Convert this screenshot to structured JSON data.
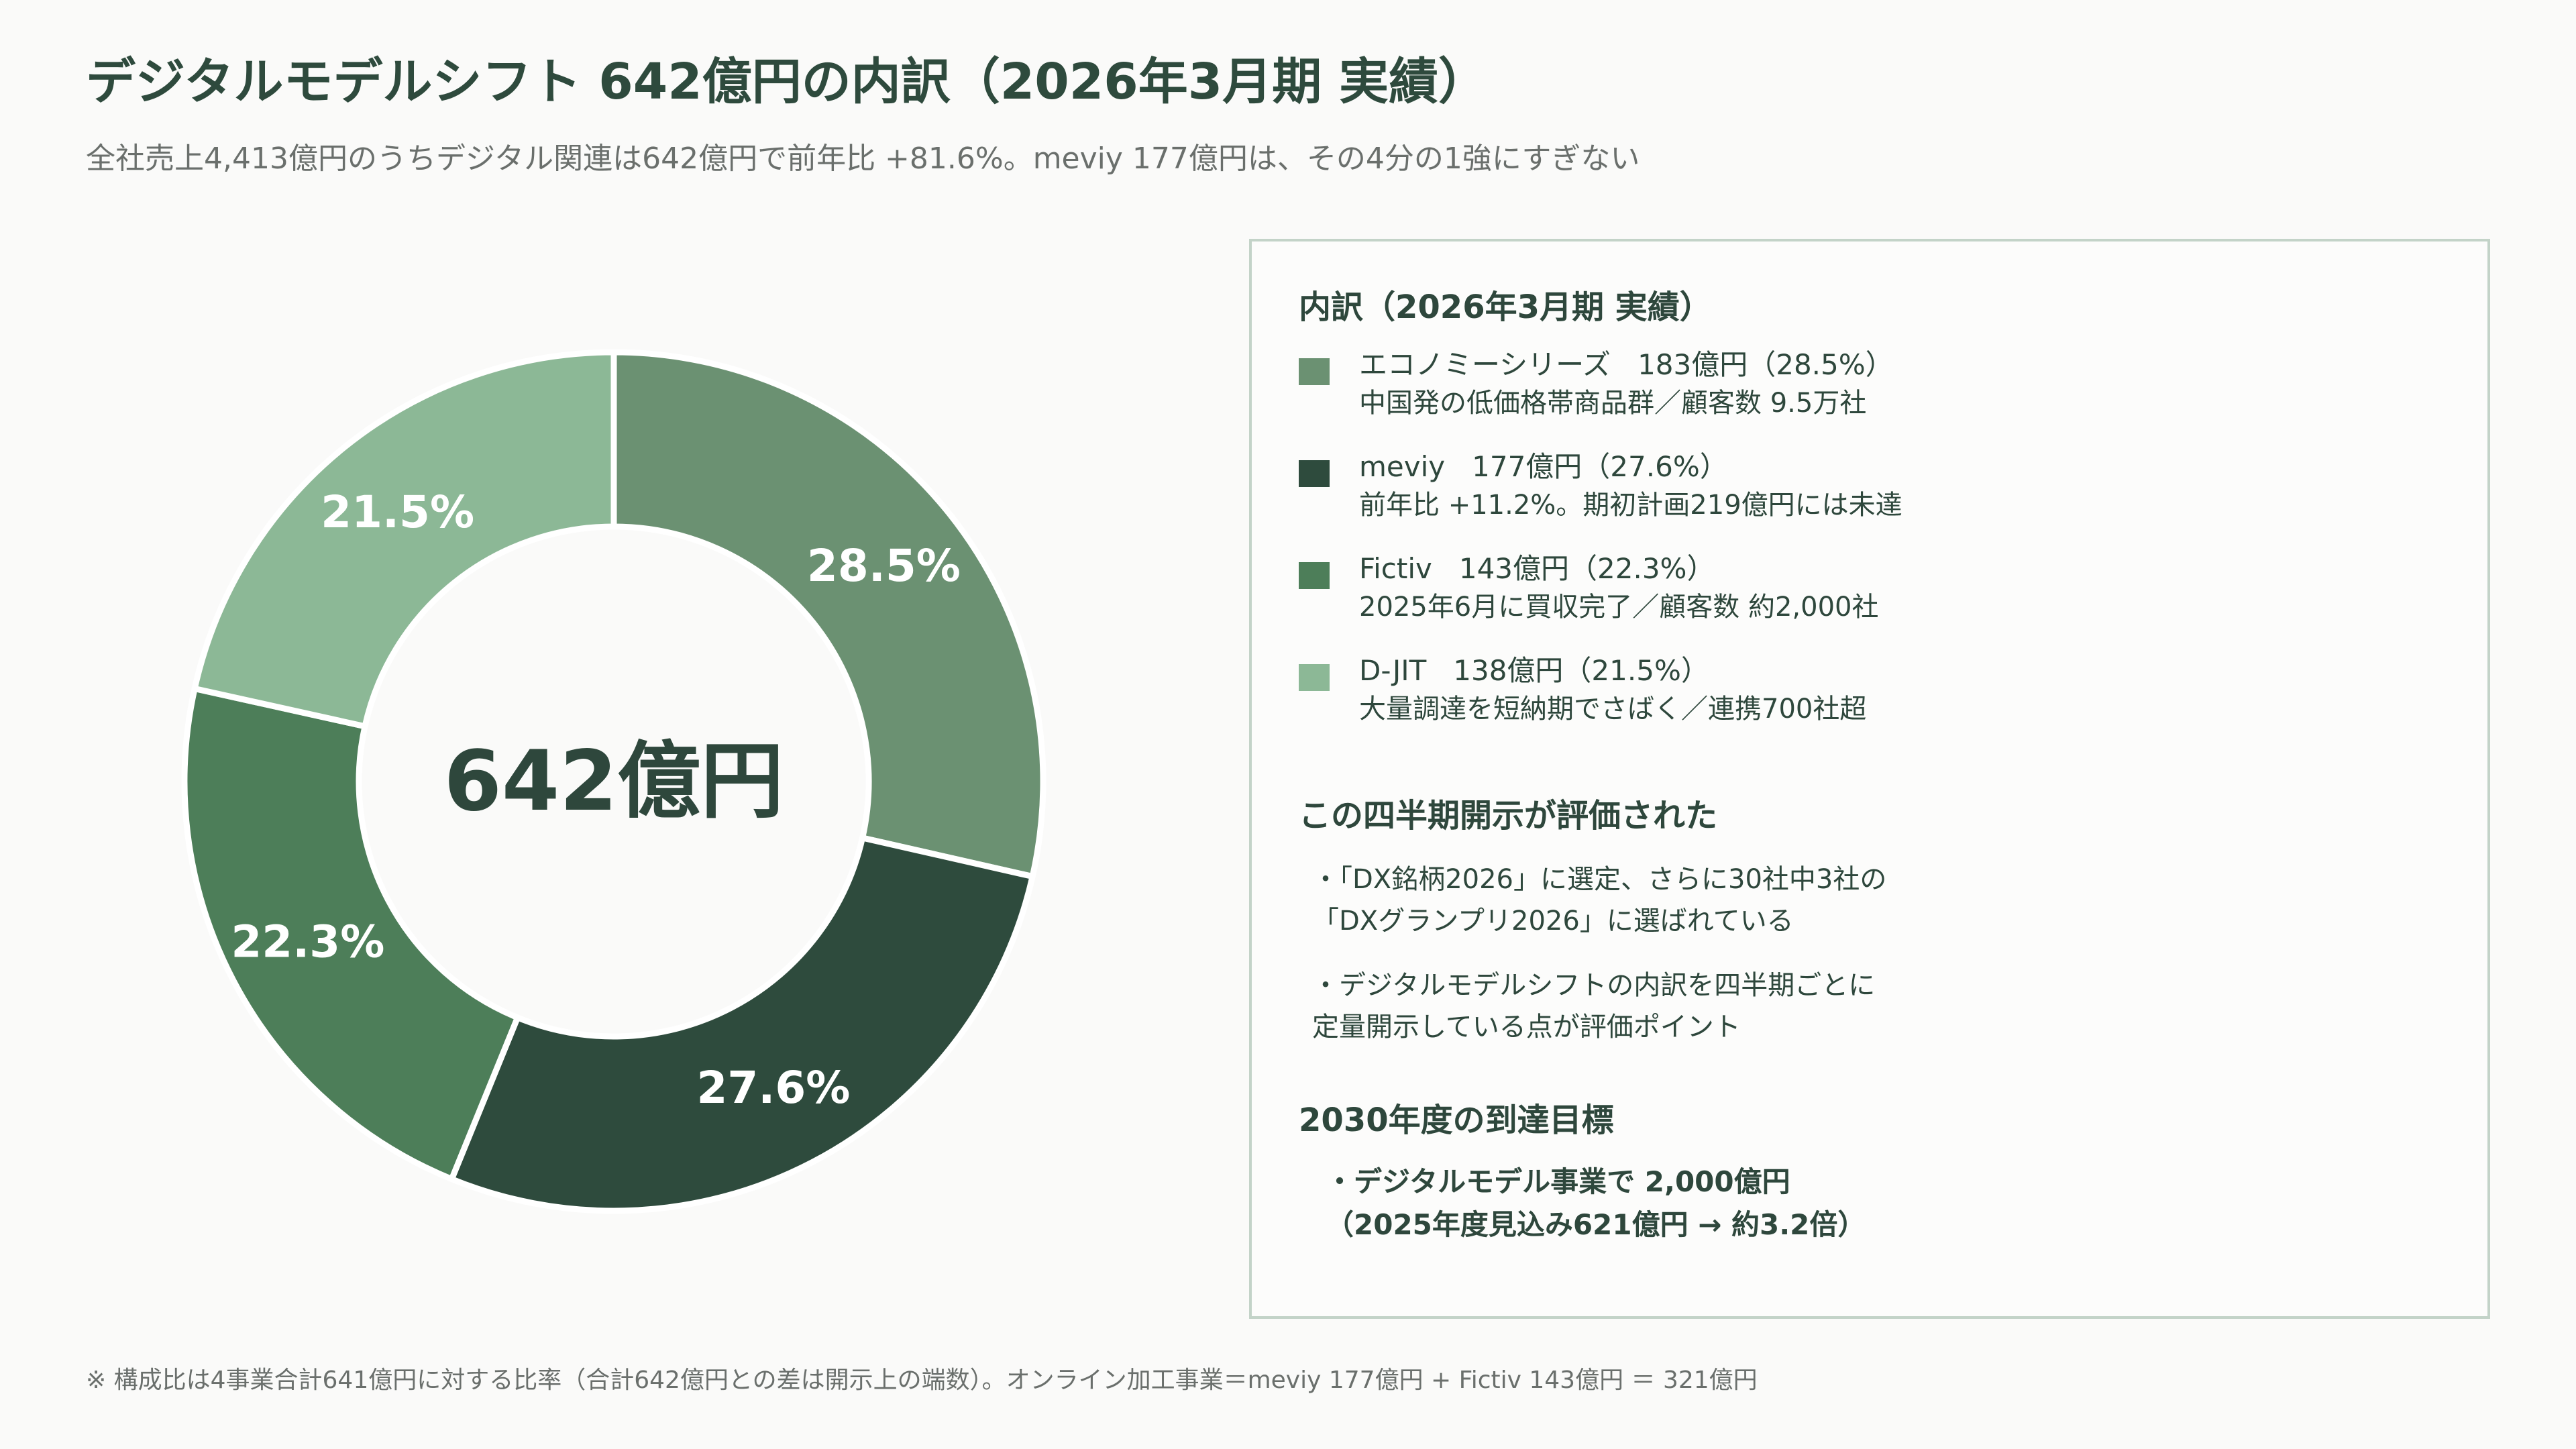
{
  "page": {
    "title": "デジタルモデルシフト 642億円の内訳（2026年3月期 実績）",
    "subtitle": "全社売上4,413億円のうちデジタル関連は642億円で前年比 +81.6%。meviy 177億円は、その4分の1強にすぎない",
    "footnote": "※ 構成比は4事業合計641億円に対する比率（合計642億円との差は開示上の端数）。オンライン加工事業＝meviy 177億円 + Fictiv 143億円 ＝ 321億円"
  },
  "chart_data": {
    "type": "pie",
    "center_label": "642億円",
    "slices": [
      {
        "name": "エコノミーシリーズ",
        "value": 183,
        "percent_label": "28.5%",
        "color": "#6b9172"
      },
      {
        "name": "meviy",
        "value": 177,
        "percent_label": "27.6%",
        "color": "#2e4b3d"
      },
      {
        "name": "Fictiv",
        "value": 143,
        "percent_label": "22.3%",
        "color": "#4d7e59"
      },
      {
        "name": "D-JIT",
        "value": 138,
        "percent_label": "21.5%",
        "color": "#8cb896"
      }
    ]
  },
  "panel": {
    "breakdown_heading": "内訳（2026年3月期 実績）",
    "legend": [
      {
        "name": "エコノミーシリーズ",
        "amount": "183億円（28.5%）",
        "note": "中国発の低価格帯商品群／顧客数 9.5万社",
        "color": "#6b9172"
      },
      {
        "name": "meviy",
        "amount": "177億円（27.6%）",
        "note": "前年比 +11.2%。期初計画219億円には未達",
        "color": "#2e4b3d"
      },
      {
        "name": "Fictiv",
        "amount": "143億円（22.3%）",
        "note": "2025年6月に買収完了／顧客数 約2,000社",
        "color": "#4d7e59"
      },
      {
        "name": "D-JIT",
        "amount": "138億円（21.5%）",
        "note": "大量調達を短納期でさばく／連携700社超",
        "color": "#8cb896"
      }
    ],
    "evaluation_heading": "この四半期開示が評価された",
    "evaluation_points": [
      "・「DX銘柄2026」に選定、さらに30社中3社の\n「DXグランプリ2026」に選ばれている",
      "・デジタルモデルシフトの内訳を四半期ごとに\n定量開示している点が評価ポイント"
    ],
    "target_heading": "2030年度の到達目標",
    "target_text": "・デジタルモデル事業で 2,000億円\n（2025年度見込み621億円 → 約3.2倍）"
  }
}
